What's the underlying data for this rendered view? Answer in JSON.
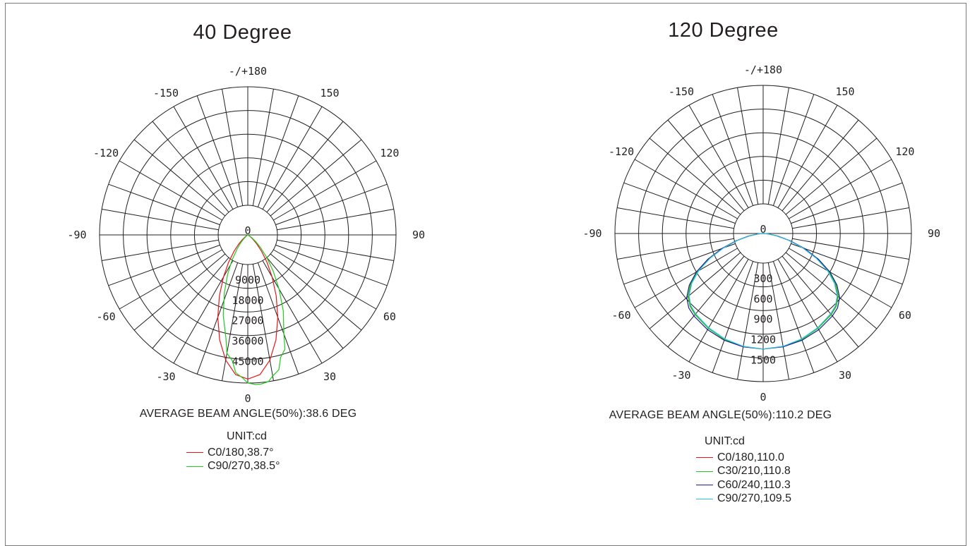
{
  "chart_data": [
    {
      "type": "polar",
      "title": "40 Degree",
      "angle_labels": [
        "-/+180",
        "150",
        "120",
        "90",
        "60",
        "30",
        "0",
        "-30",
        "-60",
        "-90",
        "-120",
        "-150"
      ],
      "center_label": "0",
      "radial_labels": [
        "9000",
        "18000",
        "27000",
        "36000",
        "45000"
      ],
      "rmax": 45000,
      "beam_text": "AVERAGE BEAM ANGLE(50%):38.6 DEG",
      "unit_text": "UNIT:cd",
      "series": [
        {
          "name": "C0/180,38.7°",
          "color": "#e8151b",
          "angles": [
            0,
            5,
            10,
            15,
            20,
            25,
            30,
            35,
            40,
            45,
            50,
            55,
            60
          ],
          "values": [
            43800,
            42600,
            38600,
            33000,
            26600,
            20400,
            14800,
            10200,
            6500,
            3800,
            2000,
            900,
            300
          ]
        },
        {
          "name": "C90/270,38.5°",
          "color": "#1ecc1e",
          "angles": [
            -10,
            -5,
            0,
            5,
            10,
            15,
            20,
            25,
            30,
            35,
            40,
            45,
            50,
            55,
            60
          ],
          "values": [
            36500,
            42000,
            45000,
            45500,
            43500,
            38500,
            32000,
            25500,
            19000,
            13500,
            9000,
            5500,
            3200,
            1500,
            500
          ]
        }
      ]
    },
    {
      "type": "polar",
      "title": "120 Degree",
      "angle_labels": [
        "-/+180",
        "150",
        "120",
        "90",
        "60",
        "30",
        "0",
        "-30",
        "-60",
        "-90",
        "-120",
        "-150"
      ],
      "center_label": "0",
      "radial_labels": [
        "300",
        "600",
        "900",
        "1200",
        "1500"
      ],
      "rmax": 1500,
      "beam_text": "AVERAGE BEAM ANGLE(50%):110.2 DEG",
      "unit_text": "UNIT:cd",
      "series": [
        {
          "name": "C0/180,110.0",
          "color": "#e8151b",
          "angles": [
            0,
            10,
            20,
            30,
            40,
            45,
            50,
            55,
            60,
            65,
            70,
            75,
            80,
            85,
            90
          ],
          "values": [
            1170,
            1162,
            1140,
            1108,
            1068,
            1040,
            985,
            890,
            760,
            600,
            430,
            270,
            140,
            50,
            5
          ]
        },
        {
          "name": "C30/210,110.8",
          "color": "#1ecc1e",
          "angles": [
            0,
            10,
            20,
            30,
            40,
            45,
            50,
            55,
            60,
            65,
            70,
            75,
            80,
            85,
            90
          ],
          "values": [
            1170,
            1163,
            1142,
            1110,
            1072,
            1046,
            992,
            898,
            768,
            608,
            438,
            276,
            144,
            52,
            5
          ]
        },
        {
          "name": "C60/240,110.3",
          "color": "#1c1c8c",
          "angles": [
            0,
            10,
            20,
            30,
            40,
            45,
            50,
            55,
            60,
            65,
            70,
            75,
            80,
            85,
            90
          ],
          "values": [
            1170,
            1165,
            1150,
            1125,
            1090,
            1065,
            1010,
            912,
            780,
            618,
            445,
            282,
            148,
            54,
            5
          ]
        },
        {
          "name": "C90/270,109.5",
          "color": "#2ec8e6",
          "angles": [
            0,
            10,
            20,
            30,
            40,
            45,
            50,
            55,
            60,
            65,
            70,
            75,
            80,
            85,
            90
          ],
          "values": [
            1170,
            1160,
            1136,
            1102,
            1062,
            1034,
            978,
            882,
            752,
            592,
            424,
            266,
            138,
            48,
            5
          ]
        }
      ]
    }
  ]
}
